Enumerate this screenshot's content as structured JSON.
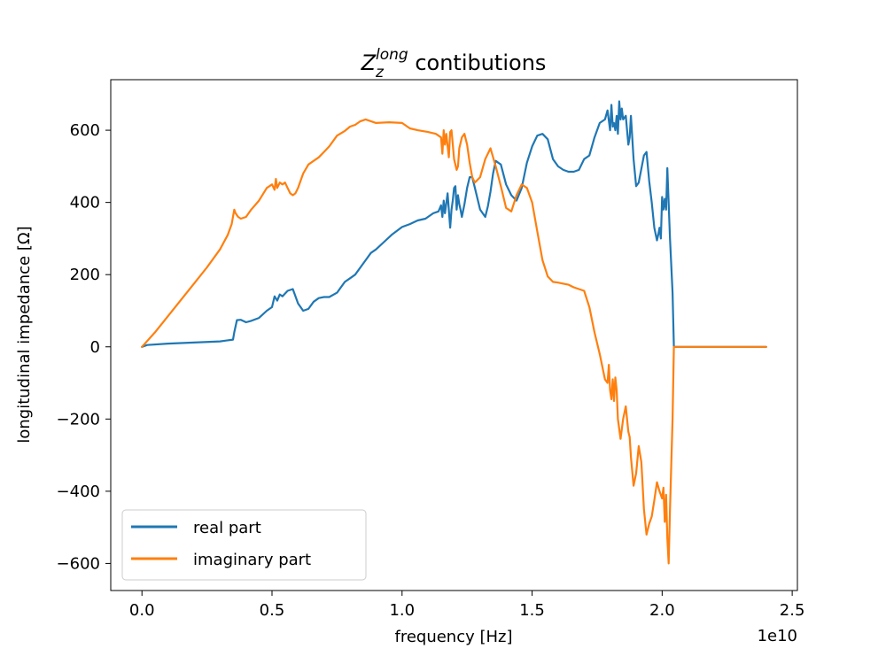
{
  "chart_data": {
    "type": "line",
    "title_main": "Z",
    "title_sub": "z",
    "title_sup": "long",
    "title_rest": " contibutions",
    "xlabel": "frequency [Hz]",
    "ylabel": "longitudinal impedance [Ω]",
    "x_offset_label": "1e10",
    "xlim": [
      -0.12,
      2.52
    ],
    "ylim": [
      -675,
      740
    ],
    "xticks": [
      0.0,
      0.5,
      1.0,
      1.5,
      2.0,
      2.5
    ],
    "xtick_labels": [
      "0.0",
      "0.5",
      "1.0",
      "1.5",
      "2.0",
      "2.5"
    ],
    "yticks": [
      -600,
      -400,
      -200,
      0,
      200,
      400,
      600
    ],
    "ytick_labels": [
      "−600",
      "−400",
      "−200",
      "0",
      "200",
      "400",
      "600"
    ],
    "legend_position": "lower-left",
    "series": [
      {
        "name": "real part",
        "color": "#1f77b4",
        "x": [
          0.0,
          0.02,
          0.1,
          0.2,
          0.3,
          0.35,
          0.355,
          0.365,
          0.38,
          0.4,
          0.42,
          0.45,
          0.48,
          0.5,
          0.51,
          0.52,
          0.53,
          0.54,
          0.56,
          0.58,
          0.6,
          0.62,
          0.64,
          0.66,
          0.68,
          0.7,
          0.72,
          0.75,
          0.78,
          0.8,
          0.82,
          0.84,
          0.86,
          0.88,
          0.9,
          0.93,
          0.96,
          1.0,
          1.03,
          1.06,
          1.09,
          1.12,
          1.14,
          1.15,
          1.155,
          1.16,
          1.165,
          1.175,
          1.185,
          1.19,
          1.195,
          1.2,
          1.205,
          1.21,
          1.215,
          1.22,
          1.225,
          1.23,
          1.24,
          1.25,
          1.26,
          1.27,
          1.28,
          1.3,
          1.32,
          1.33,
          1.34,
          1.35,
          1.36,
          1.37,
          1.38,
          1.4,
          1.42,
          1.44,
          1.46,
          1.48,
          1.5,
          1.52,
          1.54,
          1.56,
          1.58,
          1.6,
          1.62,
          1.64,
          1.66,
          1.68,
          1.7,
          1.72,
          1.74,
          1.76,
          1.78,
          1.79,
          1.8,
          1.805,
          1.81,
          1.815,
          1.82,
          1.825,
          1.83,
          1.835,
          1.84,
          1.845,
          1.85,
          1.86,
          1.87,
          1.875,
          1.88,
          1.89,
          1.9,
          1.91,
          1.93,
          1.94,
          1.95,
          1.96,
          1.97,
          1.98,
          1.985,
          1.99,
          1.995,
          2.0,
          2.005,
          2.01,
          2.015,
          2.02,
          2.03,
          2.04,
          2.045,
          2.05,
          2.055,
          2.06,
          2.065,
          2.1,
          2.2,
          2.3,
          2.4
        ],
        "y": [
          0,
          5,
          9,
          12,
          15,
          20,
          40,
          74,
          75,
          68,
          72,
          80,
          100,
          110,
          140,
          128,
          145,
          140,
          155,
          160,
          120,
          100,
          105,
          125,
          135,
          138,
          138,
          150,
          180,
          190,
          200,
          220,
          240,
          260,
          270,
          290,
          310,
          332,
          340,
          350,
          355,
          370,
          375,
          392,
          360,
          405,
          370,
          425,
          330,
          380,
          405,
          440,
          445,
          380,
          420,
          395,
          380,
          360,
          395,
          440,
          470,
          470,
          440,
          380,
          360,
          390,
          430,
          480,
          515,
          510,
          505,
          450,
          420,
          405,
          440,
          510,
          555,
          585,
          590,
          575,
          520,
          500,
          490,
          485,
          485,
          490,
          520,
          530,
          580,
          620,
          630,
          655,
          600,
          670,
          610,
          620,
          600,
          640,
          590,
          680,
          630,
          660,
          630,
          640,
          560,
          580,
          640,
          520,
          445,
          455,
          530,
          540,
          460,
          400,
          330,
          295,
          310,
          330,
          300,
          415,
          380,
          410,
          380,
          495,
          300,
          150,
          0,
          0,
          0,
          0,
          0,
          0,
          0,
          0,
          0
        ]
      },
      {
        "name": "imaginary part",
        "color": "#ff7f0e",
        "x": [
          0.0,
          0.05,
          0.1,
          0.15,
          0.2,
          0.25,
          0.3,
          0.33,
          0.345,
          0.355,
          0.36,
          0.37,
          0.38,
          0.4,
          0.42,
          0.45,
          0.48,
          0.5,
          0.51,
          0.515,
          0.52,
          0.53,
          0.54,
          0.55,
          0.56,
          0.57,
          0.58,
          0.59,
          0.6,
          0.62,
          0.64,
          0.66,
          0.68,
          0.7,
          0.72,
          0.75,
          0.78,
          0.8,
          0.82,
          0.84,
          0.86,
          0.88,
          0.9,
          0.95,
          1.0,
          1.03,
          1.06,
          1.1,
          1.13,
          1.15,
          1.155,
          1.16,
          1.165,
          1.17,
          1.18,
          1.185,
          1.19,
          1.2,
          1.21,
          1.215,
          1.22,
          1.23,
          1.24,
          1.25,
          1.26,
          1.27,
          1.28,
          1.3,
          1.32,
          1.34,
          1.36,
          1.38,
          1.4,
          1.42,
          1.44,
          1.46,
          1.48,
          1.5,
          1.52,
          1.54,
          1.56,
          1.58,
          1.6,
          1.62,
          1.64,
          1.66,
          1.68,
          1.7,
          1.72,
          1.74,
          1.76,
          1.78,
          1.79,
          1.795,
          1.8,
          1.805,
          1.81,
          1.815,
          1.82,
          1.825,
          1.83,
          1.84,
          1.85,
          1.86,
          1.87,
          1.875,
          1.88,
          1.89,
          1.9,
          1.91,
          1.92,
          1.93,
          1.94,
          1.95,
          1.96,
          1.97,
          1.98,
          1.99,
          2.0,
          2.005,
          2.01,
          2.015,
          2.02,
          2.025,
          2.03,
          2.04,
          2.045,
          2.05,
          2.055,
          2.06,
          2.1,
          2.2,
          2.3,
          2.4
        ],
        "y": [
          0,
          40,
          85,
          130,
          175,
          220,
          270,
          310,
          340,
          380,
          370,
          360,
          355,
          360,
          380,
          405,
          440,
          450,
          435,
          465,
          440,
          455,
          450,
          455,
          440,
          425,
          420,
          425,
          440,
          480,
          505,
          515,
          525,
          540,
          555,
          585,
          598,
          610,
          615,
          625,
          630,
          625,
          620,
          622,
          620,
          605,
          600,
          595,
          590,
          580,
          535,
          600,
          560,
          590,
          525,
          595,
          600,
          520,
          490,
          500,
          550,
          580,
          590,
          560,
          510,
          470,
          455,
          470,
          520,
          550,
          500,
          445,
          385,
          375,
          420,
          450,
          440,
          400,
          320,
          240,
          195,
          180,
          178,
          175,
          172,
          165,
          160,
          155,
          110,
          40,
          -20,
          -90,
          -100,
          -50,
          -120,
          -145,
          -90,
          -150,
          -85,
          -120,
          -200,
          -255,
          -200,
          -165,
          -235,
          -250,
          -305,
          -385,
          -350,
          -275,
          -320,
          -450,
          -520,
          -490,
          -470,
          -425,
          -375,
          -400,
          -420,
          -390,
          -485,
          -410,
          -530,
          -600,
          -450,
          -200,
          0,
          0,
          0,
          0,
          0,
          0,
          0,
          0
        ]
      }
    ]
  }
}
